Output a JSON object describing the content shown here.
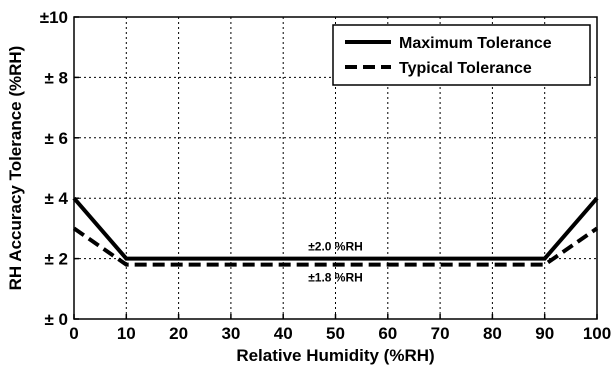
{
  "chart_data": {
    "type": "line",
    "xlabel": "Relative Humidity (%RH)",
    "ylabel": "RH Accuracy Tolerance (%RH)",
    "xlim": [
      0,
      100
    ],
    "ylim": [
      0,
      10
    ],
    "x_ticks": [
      0,
      10,
      20,
      30,
      40,
      50,
      60,
      70,
      80,
      90,
      100
    ],
    "x_tick_labels": [
      "0",
      "10",
      "20",
      "30",
      "40",
      "50",
      "60",
      "70",
      "80",
      "90",
      "100"
    ],
    "y_ticks": [
      0,
      2,
      4,
      6,
      8,
      10
    ],
    "y_tick_labels": [
      "± 0",
      "± 2",
      "± 4",
      "± 6",
      "± 8",
      "±10"
    ],
    "grid": true,
    "legend_position": "top-right",
    "series": [
      {
        "name": "Maximum Tolerance",
        "style": "solid",
        "color": "#000000",
        "x": [
          0,
          10,
          90,
          100
        ],
        "y": [
          4,
          2,
          2,
          4
        ]
      },
      {
        "name": "Typical Tolerance",
        "style": "dashed",
        "color": "#000000",
        "x": [
          0,
          10,
          90,
          100
        ],
        "y": [
          3,
          1.8,
          1.8,
          3
        ]
      }
    ],
    "annotations": [
      {
        "text": "±2.0 %RH",
        "x": 50,
        "y": 2,
        "position": "above"
      },
      {
        "text": "±1.8 %RH",
        "x": 50,
        "y": 1.8,
        "position": "below"
      }
    ]
  }
}
